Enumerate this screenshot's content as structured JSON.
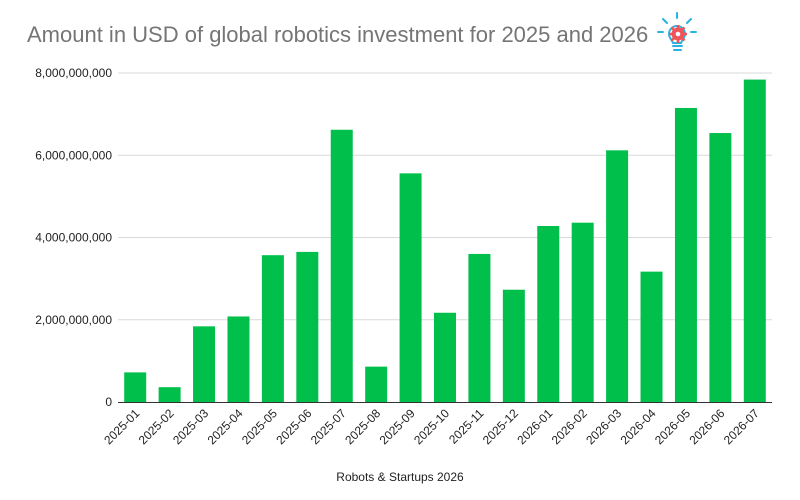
{
  "title": "Amount in USD of global robotics investment for 2025 and 2026",
  "caption": "Robots & Startups 2026",
  "logo_icon": "lightbulb-gear-icon",
  "colors": {
    "bar": "#00c04b",
    "grid": "#d9d9d9",
    "axis": "#333333",
    "title": "#757575",
    "logo_red": "#f0545a",
    "logo_blue": "#2bb3e0"
  },
  "chart_data": {
    "type": "bar",
    "title": "Amount in USD of global robotics investment for 2025 and 2026",
    "xlabel": "",
    "ylabel": "",
    "ylim": [
      0,
      8000000000
    ],
    "yticks": [
      0,
      2000000000,
      4000000000,
      6000000000,
      8000000000
    ],
    "ytick_labels": [
      "0",
      "2,000,000,000",
      "4,000,000,000",
      "6,000,000,000",
      "8,000,000,000"
    ],
    "grid": true,
    "legend": "none",
    "categories": [
      "2025-01",
      "2025-02",
      "2025-03",
      "2025-04",
      "2025-05",
      "2025-06",
      "2025-07",
      "2025-08",
      "2025-09",
      "2025-10",
      "2025-11",
      "2025-12",
      "2026-01",
      "2026-02",
      "2026-03",
      "2026-04",
      "2026-05",
      "2026-06",
      "2026-07"
    ],
    "values": [
      720000000,
      360000000,
      1840000000,
      2080000000,
      3570000000,
      3650000000,
      6620000000,
      860000000,
      5560000000,
      2170000000,
      3600000000,
      2730000000,
      4280000000,
      4360000000,
      6120000000,
      3170000000,
      7150000000,
      6540000000,
      7840000000
    ]
  }
}
